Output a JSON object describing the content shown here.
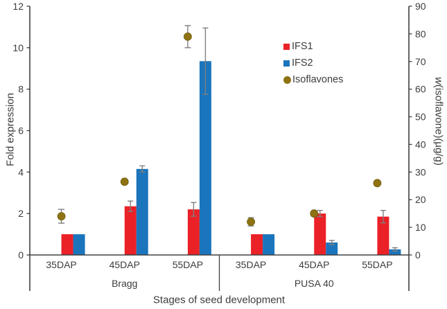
{
  "chart_data": {
    "type": "bar",
    "title": "",
    "xlabel": "Stages of seed development",
    "ylabel": "Fold expression",
    "y2label_prefix": "w",
    "y2label_rest": "(isoflavone)(µg/g)",
    "ylim": [
      0,
      12
    ],
    "y2lim": [
      0,
      90
    ],
    "yticks": [
      0,
      2,
      4,
      6,
      8,
      10,
      12
    ],
    "y2ticks": [
      0,
      10,
      20,
      30,
      40,
      50,
      60,
      70,
      80,
      90
    ],
    "grid": false,
    "legend_position": "inside-upper-right",
    "groups": [
      {
        "label": "Bragg",
        "categories": [
          "35DAP",
          "45DAP",
          "55DAP"
        ]
      },
      {
        "label": "PUSA 40",
        "categories": [
          "35DAP",
          "45DAP",
          "55DAP"
        ]
      }
    ],
    "series": [
      {
        "name": "IFS1",
        "type": "bar",
        "axis": "left",
        "color": "#ea2127",
        "values": [
          1.0,
          2.35,
          2.2,
          1.0,
          2.0,
          1.85
        ],
        "errors": [
          0,
          0.25,
          0.33,
          0,
          0.15,
          0.3
        ]
      },
      {
        "name": "IFS2",
        "type": "bar",
        "axis": "left",
        "color": "#1b75bc",
        "values": [
          1.0,
          4.15,
          9.35,
          1.0,
          0.6,
          0.27
        ],
        "errors": [
          0,
          0.15,
          1.6,
          0,
          0.1,
          0.08
        ]
      },
      {
        "name": "Isoflavones",
        "type": "point",
        "axis": "right",
        "color": "#8e7312",
        "values": [
          14,
          26.5,
          79,
          12,
          15,
          26
        ],
        "errors": [
          2.5,
          0,
          4,
          1.5,
          1,
          0
        ]
      }
    ],
    "style": {
      "spine_color": "#404040",
      "error_color": "#7f7f7f",
      "text_color": "#3c3c3c"
    }
  }
}
